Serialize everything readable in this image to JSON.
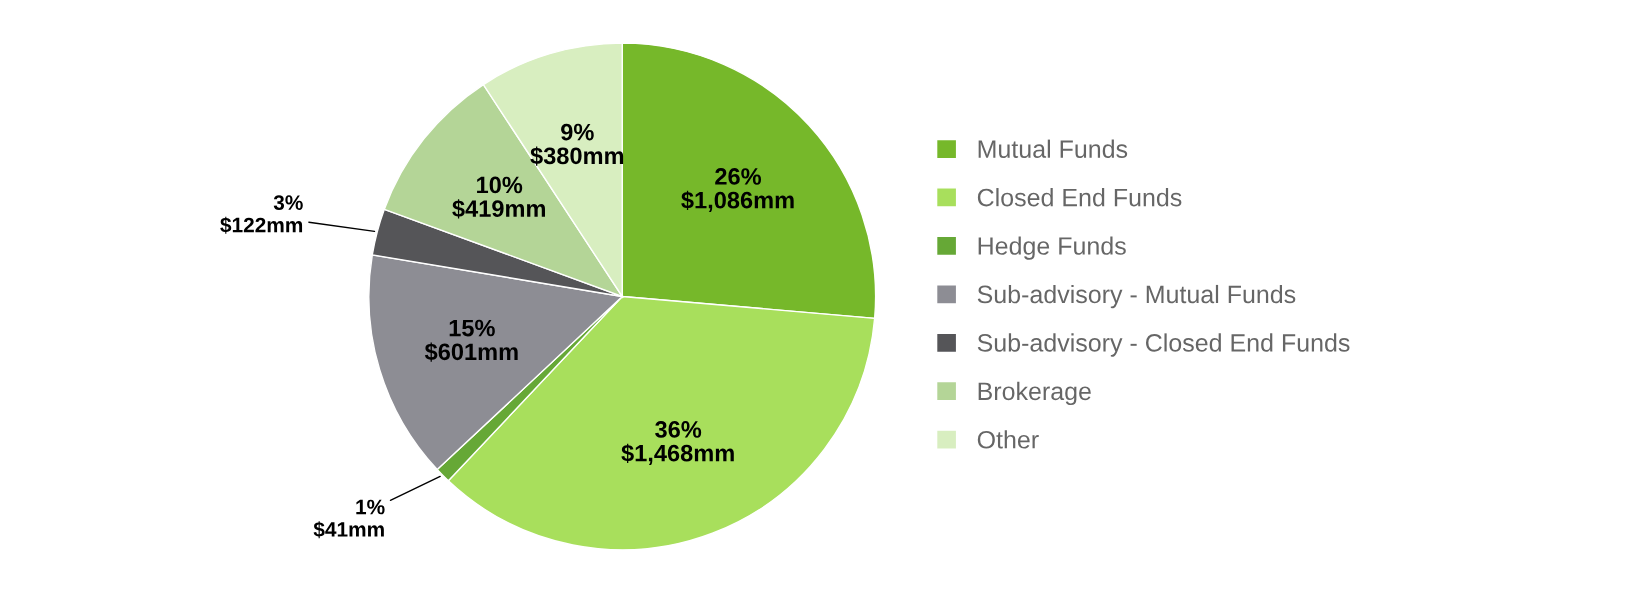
{
  "chart_data": {
    "type": "pie",
    "categories": [
      "Mutual Funds",
      "Closed End Funds",
      "Hedge Funds",
      "Sub-advisory - Mutual Funds",
      "Sub-advisory - Closed End Funds",
      "Brokerage",
      "Other"
    ],
    "values": [
      1086,
      1468,
      41,
      601,
      122,
      419,
      380
    ],
    "colors": [
      "#76b82a",
      "#a8df5c",
      "#66a836",
      "#8d8d94",
      "#555558",
      "#b4d597",
      "#d8eec0"
    ],
    "value_labels": [
      "26%\n$1,086mm",
      "36%\n$1,468mm",
      "1%\n$41mm",
      "15%\n$601mm",
      "3%\n$122mm",
      "10%\n$419mm",
      "9%\n$380mm"
    ],
    "legend": "right"
  }
}
